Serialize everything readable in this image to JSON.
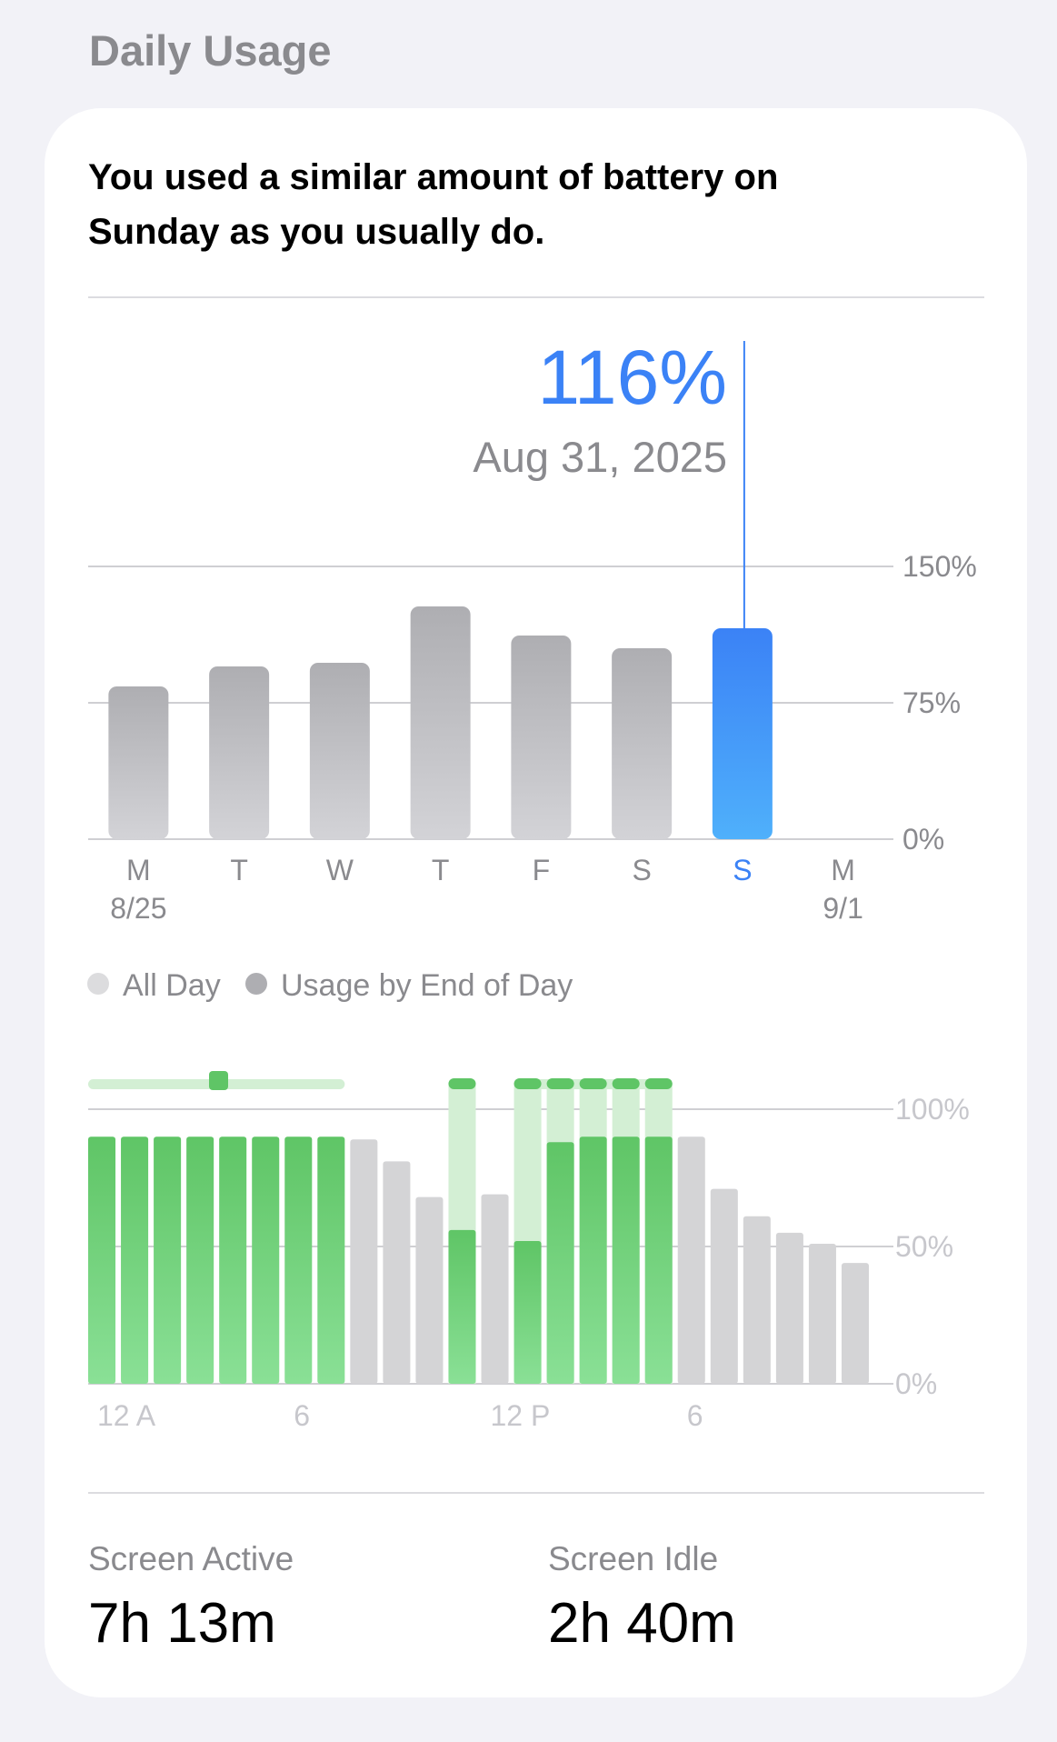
{
  "header": {
    "title": "Daily Usage"
  },
  "summary": {
    "text": "You used a similar amount of battery on Sunday as you usually do."
  },
  "selection": {
    "value": "116%",
    "date": "Aug 31, 2025"
  },
  "legend": {
    "all_day": "All Day",
    "usage_end_of_day": "Usage by End of Day"
  },
  "stats": {
    "screen_active_label": "Screen Active",
    "screen_active_value": "7h 13m",
    "screen_idle_label": "Screen Idle",
    "screen_idle_value": "2h 40m"
  },
  "colors": {
    "accent_blue": "#3b82f6",
    "bar_gray": "#b4b4b8",
    "green": "#67c96d",
    "green_light": "#d3efd4",
    "idle_gray": "#d4d4d6"
  },
  "chart_data": [
    {
      "type": "bar",
      "categories": [
        "M",
        "T",
        "W",
        "T",
        "F",
        "S",
        "S",
        "M"
      ],
      "sub_labels": [
        "8/25",
        "",
        "",
        "",
        "",
        "",
        "",
        "9/1"
      ],
      "values": [
        84,
        95,
        97,
        128,
        112,
        105,
        116,
        null
      ],
      "highlight_index": 6,
      "ylim": [
        0,
        150
      ],
      "yticks": [
        "0%",
        "75%",
        "150%"
      ],
      "ytick_values": [
        0,
        75,
        150
      ],
      "grid": true
    },
    {
      "type": "bar",
      "x_labels": [
        "12 A",
        "6",
        "12 P",
        "6"
      ],
      "x_label_hours": [
        0,
        6,
        12,
        18
      ],
      "levels": [
        90,
        90,
        90,
        90,
        90,
        90,
        90,
        90,
        89,
        81,
        68,
        56,
        69,
        52,
        88,
        90,
        90,
        90,
        90,
        71,
        61,
        55,
        51,
        44
      ],
      "charging": [
        true,
        true,
        true,
        true,
        true,
        true,
        true,
        true,
        false,
        false,
        false,
        true,
        false,
        true,
        true,
        true,
        true,
        true,
        false,
        false,
        false,
        false,
        false,
        false
      ],
      "charge_overlay": [
        false,
        false,
        false,
        false,
        false,
        false,
        false,
        false,
        false,
        false,
        false,
        true,
        false,
        true,
        true,
        true,
        true,
        true,
        false,
        false,
        false,
        false,
        false,
        false
      ],
      "ylim": [
        0,
        100
      ],
      "yticks": [
        "0%",
        "50%",
        "100%"
      ],
      "ytick_values": [
        0,
        50,
        100
      ],
      "grid": true
    }
  ]
}
